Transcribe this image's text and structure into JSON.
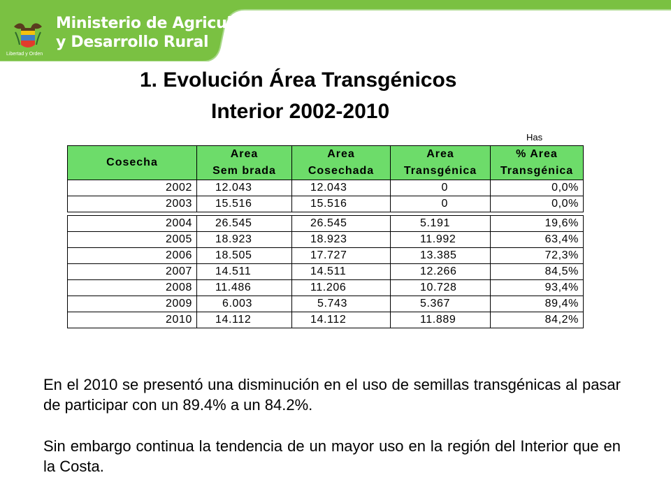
{
  "header": {
    "ministry_line1": "Ministerio de Agricultura",
    "ministry_line2": "y Desarrollo Rural",
    "motto": "Libertad y Orden",
    "brand_color": "#7ac142"
  },
  "title": {
    "line1": "1.   Evolución Área Transgénicos",
    "line2": "Interior 2002-2010"
  },
  "table": {
    "units": "Has",
    "header_color": "#6ddc6a",
    "headers": [
      {
        "line1": "Cosecha",
        "line2": ""
      },
      {
        "line1": "Area",
        "line2": "Sem brada"
      },
      {
        "line1": "Area",
        "line2": "Cosechada"
      },
      {
        "line1": "Area",
        "line2": "Transgénica"
      },
      {
        "line1": "% Area",
        "line2": "Transgénica"
      }
    ],
    "rows": [
      [
        "2002",
        "12.043",
        "12.043",
        "0",
        "0,0%"
      ],
      [
        "2003",
        "15.516",
        "15.516",
        "0",
        "0,0%"
      ],
      [
        "2004",
        "26.545",
        "26.545",
        "5.191",
        "19,6%"
      ],
      [
        "2005",
        "18.923",
        "18.923",
        "11.992",
        "63,4%"
      ],
      [
        "2006",
        "18.505",
        "17.727",
        "13.385",
        "72,3%"
      ],
      [
        "2007",
        "14.511",
        "14.511",
        "12.266",
        "84,5%"
      ],
      [
        "2008",
        "11.486",
        "11.206",
        "10.728",
        "93,4%"
      ],
      [
        "2009",
        "6.003",
        "5.743",
        "5.367",
        "89,4%"
      ],
      [
        "2010",
        "14.112",
        "14.112",
        "11.889",
        "84,2%"
      ]
    ]
  },
  "paragraphs": {
    "p1": "En el 2010 se presentó una disminución en el uso de semillas transgénicas al pasar de participar con un 89.4% a un 84.2%.",
    "p2": "Sin embargo continua la tendencia de un mayor uso en la región del Interior que en la Costa."
  }
}
